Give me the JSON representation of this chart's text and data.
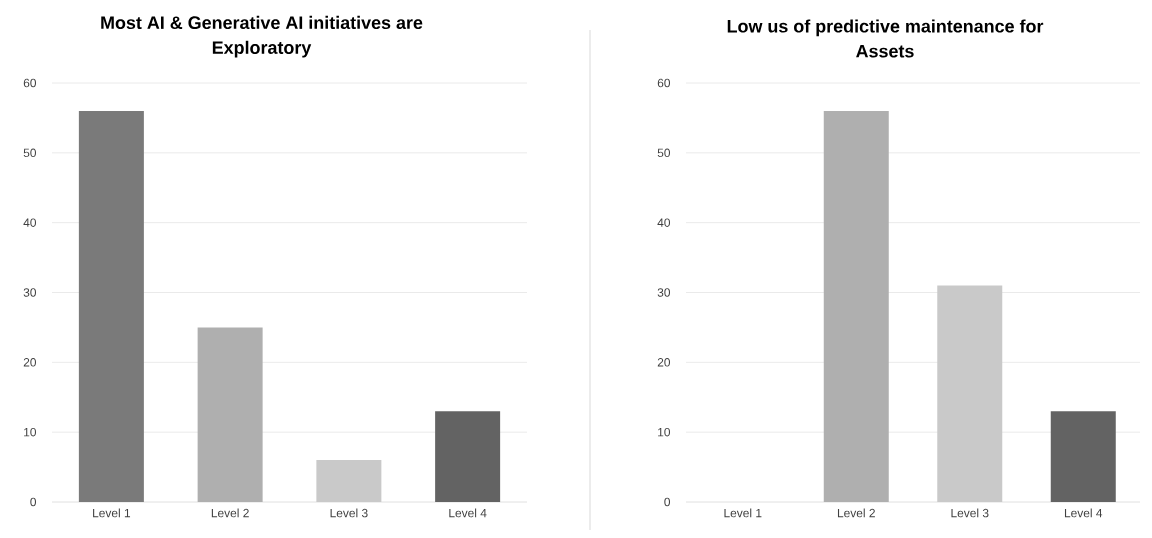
{
  "chart_data": [
    {
      "type": "bar",
      "title": "Most AI & Generative AI initiatives are Exploratory",
      "categories": [
        "Level 1",
        "Level 2",
        "Level 3",
        "Level 4"
      ],
      "values": [
        56,
        25,
        6,
        13
      ],
      "colors": [
        "#7a7a7a",
        "#afafaf",
        "#c9c9c9",
        "#636363"
      ],
      "ylim": [
        0,
        60
      ],
      "yticks": [
        0,
        10,
        20,
        30,
        40,
        50,
        60
      ],
      "grid": "y"
    },
    {
      "type": "bar",
      "title": "Low us of predictive maintenance for Assets",
      "categories": [
        "Level 1",
        "Level 2",
        "Level 3",
        "Level 4"
      ],
      "values": [
        0,
        56,
        31,
        13
      ],
      "colors": [
        "#7a7a7a",
        "#afafaf",
        "#c9c9c9",
        "#636363"
      ],
      "ylim": [
        0,
        60
      ],
      "yticks": [
        0,
        10,
        20,
        30,
        40,
        50,
        60
      ],
      "grid": "y"
    }
  ]
}
